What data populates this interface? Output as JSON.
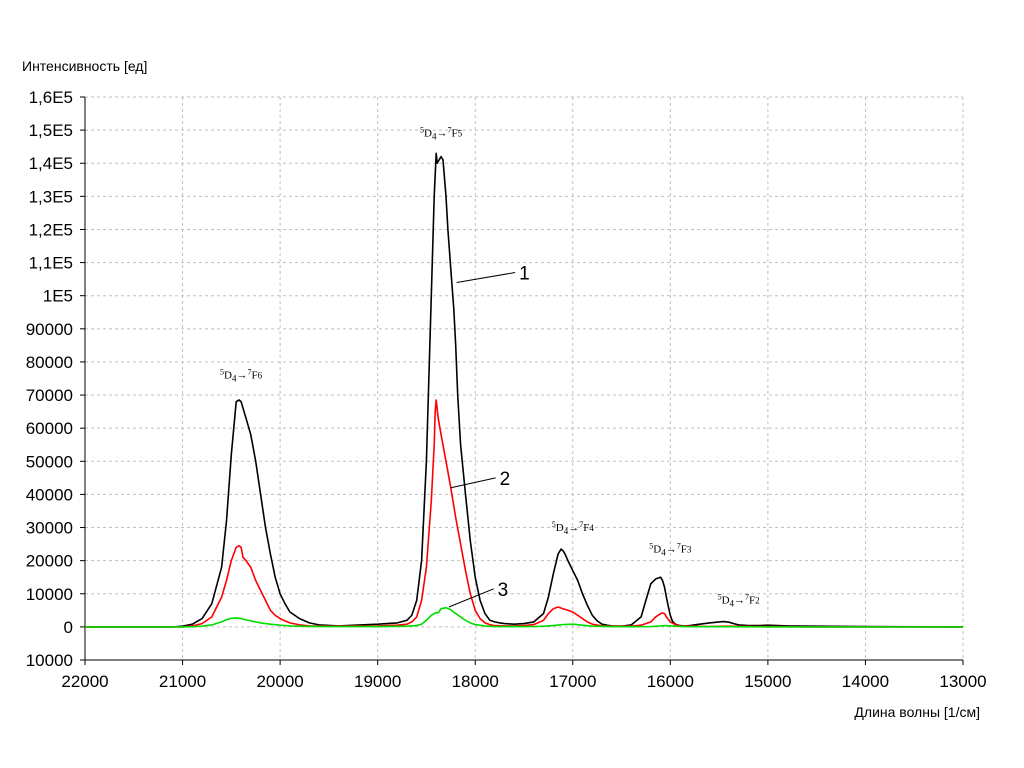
{
  "chart_data": {
    "type": "line",
    "xlabel": "Длина волны [1/см]",
    "ylabel": "Интенсивность [ед]",
    "xlim": [
      22000,
      13000
    ],
    "x_reversed": true,
    "ylim": [
      -10000,
      160000
    ],
    "grid": true,
    "x_ticks": [
      22000,
      21000,
      20000,
      19000,
      18000,
      17000,
      16000,
      15000,
      14000,
      13000
    ],
    "x_tick_labels": [
      "22000",
      "21000",
      "20000",
      "19000",
      "18000",
      "17000",
      "16000",
      "15000",
      "14000",
      "13000"
    ],
    "y_ticks": [
      -10000,
      0,
      10000,
      20000,
      30000,
      40000,
      50000,
      60000,
      70000,
      80000,
      90000,
      100000,
      110000,
      120000,
      130000,
      140000,
      150000,
      160000
    ],
    "y_tick_labels": [
      "10000",
      "0",
      "10000",
      "20000",
      "30000",
      "40000",
      "50000",
      "60000",
      "70000",
      "80000",
      "90000",
      "1E5",
      "1,1E5",
      "1,2E5",
      "1,3E5",
      "1,4E5",
      "1,5E5",
      "1,6E5"
    ],
    "series": [
      {
        "name": "1",
        "color": "#000000",
        "x": [
          22000,
          21100,
          21000,
          20900,
          20800,
          20700,
          20600,
          20550,
          20500,
          20450,
          20420,
          20400,
          20350,
          20300,
          20250,
          20200,
          20150,
          20100,
          20050,
          20000,
          19950,
          19900,
          19800,
          19700,
          19600,
          19400,
          19000,
          18800,
          18700,
          18650,
          18600,
          18550,
          18500,
          18450,
          18420,
          18400,
          18390,
          18370,
          18350,
          18330,
          18300,
          18280,
          18250,
          18220,
          18200,
          18180,
          18150,
          18100,
          18050,
          18000,
          17950,
          17900,
          17850,
          17800,
          17750,
          17700,
          17600,
          17500,
          17400,
          17300,
          17250,
          17200,
          17150,
          17120,
          17100,
          17080,
          17050,
          17000,
          16950,
          16900,
          16850,
          16800,
          16750,
          16700,
          16650,
          16600,
          16500,
          16400,
          16300,
          16250,
          16200,
          16150,
          16100,
          16080,
          16060,
          16040,
          16020,
          16000,
          15980,
          15950,
          15900,
          15850,
          15800,
          15700,
          15600,
          15500,
          15450,
          15400,
          15350,
          15300,
          15200,
          15100,
          15000,
          14900,
          14800,
          14500,
          14000,
          13000
        ],
        "y": [
          0,
          0,
          200,
          800,
          2500,
          7000,
          18000,
          32000,
          52000,
          68000,
          68500,
          68000,
          63000,
          58000,
          50000,
          40000,
          30000,
          22000,
          15000,
          10000,
          7000,
          4500,
          2500,
          1200,
          600,
          300,
          800,
          1200,
          2000,
          3500,
          8000,
          20000,
          50000,
          100000,
          130000,
          143000,
          140000,
          141000,
          142000,
          141000,
          130000,
          120000,
          108000,
          96000,
          85000,
          70000,
          55000,
          40000,
          26000,
          15000,
          8000,
          4000,
          2000,
          1500,
          1200,
          1000,
          800,
          1000,
          1500,
          4000,
          9000,
          16000,
          22000,
          23500,
          23000,
          22000,
          20000,
          17000,
          14000,
          10000,
          6500,
          3500,
          1800,
          800,
          500,
          300,
          200,
          600,
          3000,
          8000,
          13000,
          14500,
          15000,
          14000,
          12000,
          9000,
          6000,
          3500,
          1800,
          800,
          400,
          300,
          400,
          800,
          1200,
          1500,
          1600,
          1400,
          1000,
          600,
          400,
          400,
          500,
          400,
          300,
          200,
          100,
          0
        ]
      },
      {
        "name": "2",
        "color": "#ff0000",
        "x": [
          22000,
          21000,
          20900,
          20800,
          20700,
          20600,
          20550,
          20500,
          20450,
          20420,
          20400,
          20380,
          20350,
          20300,
          20250,
          20200,
          20150,
          20100,
          20050,
          20000,
          19950,
          19900,
          19800,
          19700,
          19500,
          19000,
          18800,
          18700,
          18650,
          18600,
          18550,
          18500,
          18450,
          18420,
          18410,
          18400,
          18380,
          18350,
          18300,
          18250,
          18200,
          18150,
          18100,
          18050,
          18000,
          17950,
          17900,
          17850,
          17800,
          17700,
          17600,
          17500,
          17400,
          17300,
          17250,
          17200,
          17150,
          17100,
          17050,
          17000,
          16950,
          16900,
          16850,
          16800,
          16700,
          16600,
          16500,
          16400,
          16300,
          16200,
          16150,
          16100,
          16080,
          16060,
          16040,
          16000,
          15950,
          15900,
          15800,
          15600,
          15400,
          15200,
          15000,
          14500,
          13000
        ],
        "y": [
          0,
          0,
          300,
          1000,
          3000,
          9000,
          14000,
          20000,
          24000,
          24500,
          24000,
          21000,
          20000,
          18000,
          14000,
          11000,
          8000,
          5000,
          3500,
          2500,
          1800,
          1200,
          600,
          300,
          200,
          300,
          500,
          800,
          1500,
          3000,
          8000,
          18000,
          38000,
          55000,
          65000,
          68500,
          63000,
          58000,
          50000,
          42000,
          33000,
          25000,
          17000,
          10000,
          5000,
          2500,
          1200,
          700,
          400,
          300,
          300,
          400,
          700,
          2000,
          4000,
          5500,
          6000,
          5500,
          5000,
          4500,
          3500,
          2500,
          1500,
          800,
          300,
          200,
          200,
          200,
          500,
          1500,
          3000,
          4000,
          4200,
          4000,
          3000,
          1500,
          700,
          300,
          200,
          100,
          200,
          100,
          100,
          0,
          0
        ]
      },
      {
        "name": "3",
        "color": "#00dd00",
        "x": [
          22000,
          21000,
          20900,
          20800,
          20700,
          20600,
          20550,
          20500,
          20450,
          20400,
          20350,
          20300,
          20200,
          20100,
          20000,
          19900,
          19700,
          19500,
          19000,
          18700,
          18600,
          18550,
          18500,
          18450,
          18420,
          18400,
          18380,
          18350,
          18300,
          18250,
          18200,
          18150,
          18100,
          18050,
          18000,
          17900,
          17800,
          17600,
          17400,
          17300,
          17200,
          17100,
          17000,
          16900,
          16800,
          16600,
          16400,
          16200,
          16100,
          16050,
          16000,
          15900,
          15800,
          15600,
          15400,
          15000,
          14500,
          14000,
          13000
        ],
        "y": [
          0,
          0,
          50,
          200,
          600,
          1500,
          2200,
          2600,
          2700,
          2500,
          2100,
          1800,
          1200,
          800,
          500,
          300,
          150,
          100,
          100,
          200,
          400,
          800,
          2000,
          3500,
          4000,
          4300,
          4200,
          5500,
          5800,
          5200,
          4000,
          3000,
          2000,
          1200,
          700,
          300,
          100,
          100,
          100,
          200,
          400,
          700,
          800,
          500,
          200,
          100,
          50,
          100,
          300,
          400,
          300,
          150,
          50,
          50,
          50,
          0,
          0,
          0,
          0
        ]
      }
    ],
    "annotations": [
      {
        "text_upper": "5",
        "text_main": "D",
        "text_sub": "4",
        "arrow": "→",
        "text_upper2": "7",
        "text_main2": "F",
        "text_sub2": "6",
        "x": 20400,
        "y": 75000
      },
      {
        "text_upper": "5",
        "text_main": "D",
        "text_sub": "4",
        "arrow": "→",
        "text_upper2": "7",
        "text_main2": "F",
        "text_sub2": "5",
        "x": 18350,
        "y": 148000
      },
      {
        "text_upper": "5",
        "text_main": "D",
        "text_sub": "4",
        "arrow": "→",
        "text_upper2": "7",
        "text_main2": "F",
        "text_sub2": "4",
        "x": 17000,
        "y": 29000
      },
      {
        "text_upper": "5",
        "text_main": "D",
        "text_sub": "4",
        "arrow": "→",
        "text_upper2": "7",
        "text_main2": "F",
        "text_sub2": "3",
        "x": 16000,
        "y": 22500
      },
      {
        "text_upper": "5",
        "text_main": "D",
        "text_sub": "4",
        "arrow": "→",
        "text_upper2": "7",
        "text_main2": "F",
        "text_sub2": "2",
        "x": 15300,
        "y": 7000
      }
    ],
    "curve_labels": [
      {
        "text": "1",
        "x": 17550,
        "y": 107000,
        "to_x": 18190,
        "to_y": 104000
      },
      {
        "text": "2",
        "x": 17750,
        "y": 45000,
        "to_x": 18250,
        "to_y": 42000
      },
      {
        "text": "3",
        "x": 17770,
        "y": 11500,
        "to_x": 18270,
        "to_y": 6000
      }
    ]
  }
}
